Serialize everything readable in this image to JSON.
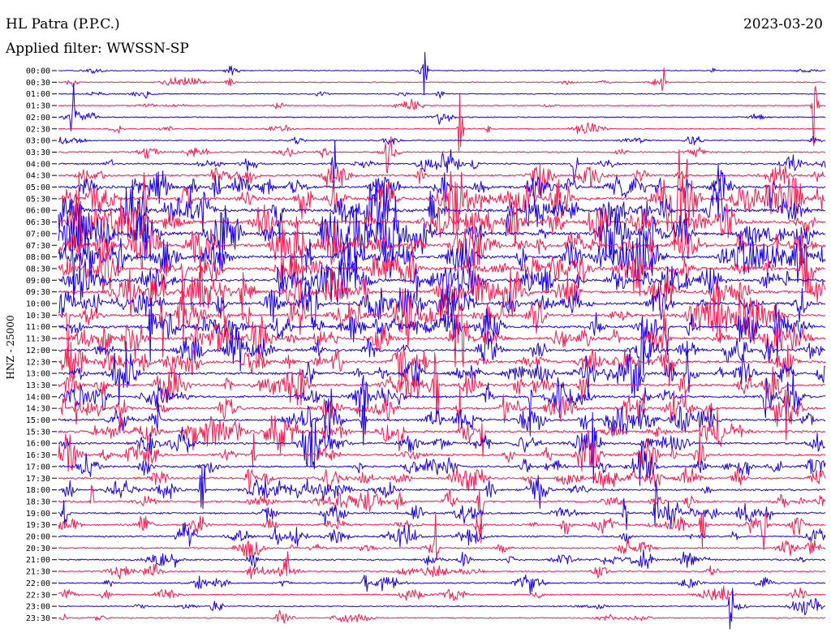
{
  "header": {
    "station": "HL Patra (P.P.C.)",
    "filter": "Applied filter: WWSSN-SP",
    "date": "2023-03-20",
    "channel": "HNZ - 25000"
  },
  "colors": {
    "trace_odd": "#1a00e6",
    "trace_even": "#ff1a4d",
    "background": "#ffffff"
  },
  "chart_data": {
    "type": "line",
    "title": "HL Patra (P.P.C.)",
    "subtitle": "Applied filter: WWSSN-SP",
    "ylabel": "HNZ - 25000",
    "xlabel": "",
    "grid": false,
    "trace_colors": [
      "#1a00e6",
      "#ff1a4d"
    ],
    "y_tick_labels": [
      "00:00",
      "00:30",
      "01:00",
      "01:30",
      "02:00",
      "02:30",
      "03:00",
      "03:30",
      "04:00",
      "04:30",
      "05:00",
      "05:30",
      "06:00",
      "06:30",
      "07:00",
      "07:30",
      "08:00",
      "08:30",
      "09:00",
      "09:30",
      "10:00",
      "10:30",
      "11:00",
      "11:30",
      "12:00",
      "12:30",
      "13:00",
      "13:30",
      "14:00",
      "14:30",
      "15:00",
      "15:30",
      "16:00",
      "16:30",
      "17:00",
      "17:30",
      "18:00",
      "18:30",
      "19:00",
      "19:30",
      "20:00",
      "20:30",
      "21:00",
      "21:30",
      "22:00",
      "22:30",
      "23:00",
      "23:30"
    ],
    "activity_level": [
      0.06,
      0.07,
      0.08,
      0.08,
      0.09,
      0.1,
      0.12,
      0.18,
      0.3,
      0.45,
      0.7,
      0.9,
      0.95,
      0.95,
      0.95,
      0.95,
      0.9,
      0.85,
      0.8,
      0.8,
      0.8,
      0.8,
      0.75,
      0.75,
      0.7,
      0.7,
      0.7,
      0.7,
      0.65,
      0.65,
      0.6,
      0.6,
      0.55,
      0.55,
      0.5,
      0.5,
      0.45,
      0.45,
      0.42,
      0.4,
      0.35,
      0.32,
      0.3,
      0.25,
      0.22,
      0.18,
      0.16,
      0.14
    ]
  }
}
